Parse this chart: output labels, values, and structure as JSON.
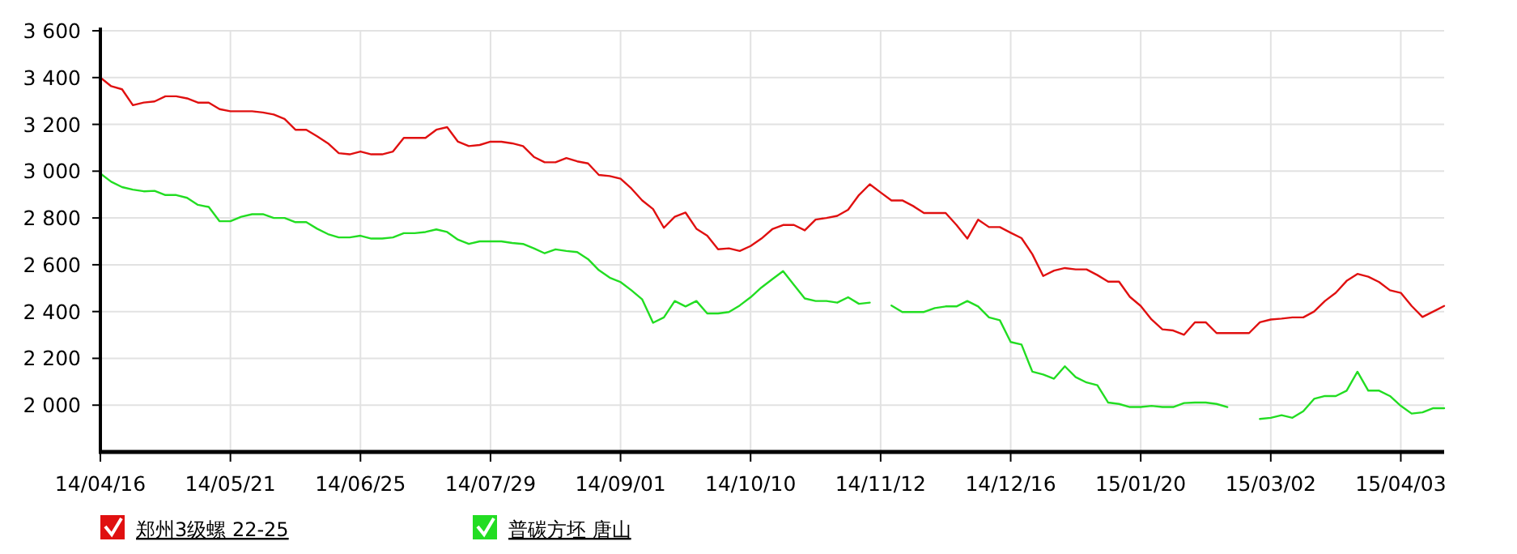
{
  "chart_data": {
    "type": "line",
    "categories": [
      "14/04/16",
      null,
      null,
      null,
      null,
      null,
      null,
      null,
      null,
      null,
      null,
      null,
      "14/05/21",
      null,
      null,
      null,
      null,
      null,
      null,
      null,
      null,
      null,
      null,
      null,
      "14/06/25",
      null,
      null,
      null,
      null,
      null,
      null,
      null,
      null,
      null,
      null,
      null,
      "14/07/29",
      null,
      null,
      null,
      null,
      null,
      null,
      null,
      null,
      null,
      null,
      null,
      "14/09/01",
      null,
      null,
      null,
      null,
      null,
      null,
      null,
      null,
      null,
      null,
      null,
      "14/10/10",
      null,
      null,
      null,
      null,
      null,
      null,
      null,
      null,
      null,
      null,
      null,
      "14/11/12",
      null,
      null,
      null,
      null,
      null,
      null,
      null,
      null,
      null,
      null,
      null,
      "14/12/16",
      null,
      null,
      null,
      null,
      null,
      null,
      null,
      null,
      null,
      null,
      null,
      "15/01/20",
      null,
      null,
      null,
      null,
      null,
      null,
      null,
      null,
      null,
      null,
      null,
      "15/03/02",
      null,
      null,
      null,
      null,
      null,
      null,
      null,
      null,
      null,
      null,
      null,
      "15/04/03",
      null,
      null,
      null,
      null
    ],
    "series": [
      {
        "name": "郑州3级螺 22-25",
        "color": "#e01010",
        "values": [
          3400,
          3363,
          3350,
          3282,
          3293,
          3298,
          3320,
          3320,
          3311,
          3293,
          3293,
          3265,
          3256,
          3256,
          3256,
          3251,
          3242,
          3223,
          3177,
          3177,
          3149,
          3119,
          3077,
          3072,
          3084,
          3072,
          3072,
          3084,
          3142,
          3142,
          3142,
          3177,
          3188,
          3126,
          3107,
          3112,
          3126,
          3126,
          3119,
          3107,
          3061,
          3038,
          3038,
          3056,
          3042,
          3033,
          2984,
          2979,
          2968,
          2926,
          2875,
          2838,
          2758,
          2805,
          2823,
          2754,
          2724,
          2666,
          2670,
          2659,
          2680,
          2712,
          2752,
          2770,
          2770,
          2747,
          2793,
          2800,
          2809,
          2835,
          2898,
          2944,
          2909,
          2875,
          2875,
          2851,
          2821,
          2821,
          2821,
          2770,
          2712,
          2793,
          2761,
          2761,
          2737,
          2714,
          2645,
          2552,
          2575,
          2586,
          2580,
          2580,
          2556,
          2528,
          2528,
          2463,
          2424,
          2366,
          2324,
          2319,
          2301,
          2354,
          2354,
          2308,
          2308,
          2308,
          2308,
          2354,
          2366,
          2370,
          2375,
          2375,
          2400,
          2445,
          2480,
          2531,
          2561,
          2549,
          2526,
          2491,
          2480,
          2424,
          2377,
          2400,
          2424
        ]
      },
      {
        "name": "普碳方坯 唐山",
        "color": "#22dd22",
        "values": [
          2990,
          2955,
          2932,
          2921,
          2914,
          2916,
          2898,
          2898,
          2886,
          2856,
          2847,
          2786,
          2786,
          2805,
          2816,
          2816,
          2800,
          2800,
          2782,
          2782,
          2754,
          2731,
          2717,
          2717,
          2724,
          2712,
          2712,
          2717,
          2735,
          2735,
          2740,
          2751,
          2740,
          2707,
          2689,
          2700,
          2700,
          2700,
          2693,
          2689,
          2670,
          2649,
          2666,
          2659,
          2654,
          2624,
          2577,
          2545,
          2526,
          2491,
          2452,
          2352,
          2375,
          2445,
          2422,
          2445,
          2392,
          2392,
          2398,
          2426,
          2461,
          2503,
          2538,
          2573,
          2514,
          2456,
          2445,
          2445,
          2438,
          2461,
          2433,
          2438,
          null,
          2426,
          2398,
          2398,
          2398,
          2415,
          2422,
          2422,
          2445,
          2422,
          2375,
          2363,
          2270,
          2259,
          2143,
          2131,
          2113,
          2166,
          2120,
          2097,
          2085,
          2011,
          2005,
          1992,
          1992,
          1997,
          1992,
          1992,
          2009,
          2011,
          2011,
          2005,
          1992,
          null,
          null,
          1941,
          1946,
          1957,
          1946,
          1974,
          2027,
          2039,
          2039,
          2062,
          2143,
          2062,
          2062,
          2039,
          1997,
          1964,
          1969,
          1987,
          1987
        ]
      }
    ],
    "ylim": [
      1800,
      3600
    ],
    "yticks": [
      {
        "value": 2000,
        "label": "2 000"
      },
      {
        "value": 2200,
        "label": "2 200"
      },
      {
        "value": 2400,
        "label": "2 400"
      },
      {
        "value": 2600,
        "label": "2 600"
      },
      {
        "value": 2800,
        "label": "2 800"
      },
      {
        "value": 3000,
        "label": "3 000"
      },
      {
        "value": 3200,
        "label": "3 200"
      },
      {
        "value": 3400,
        "label": "3 400"
      },
      {
        "value": 3600,
        "label": "3 600"
      }
    ],
    "grid": true,
    "legend": "bottom left"
  }
}
